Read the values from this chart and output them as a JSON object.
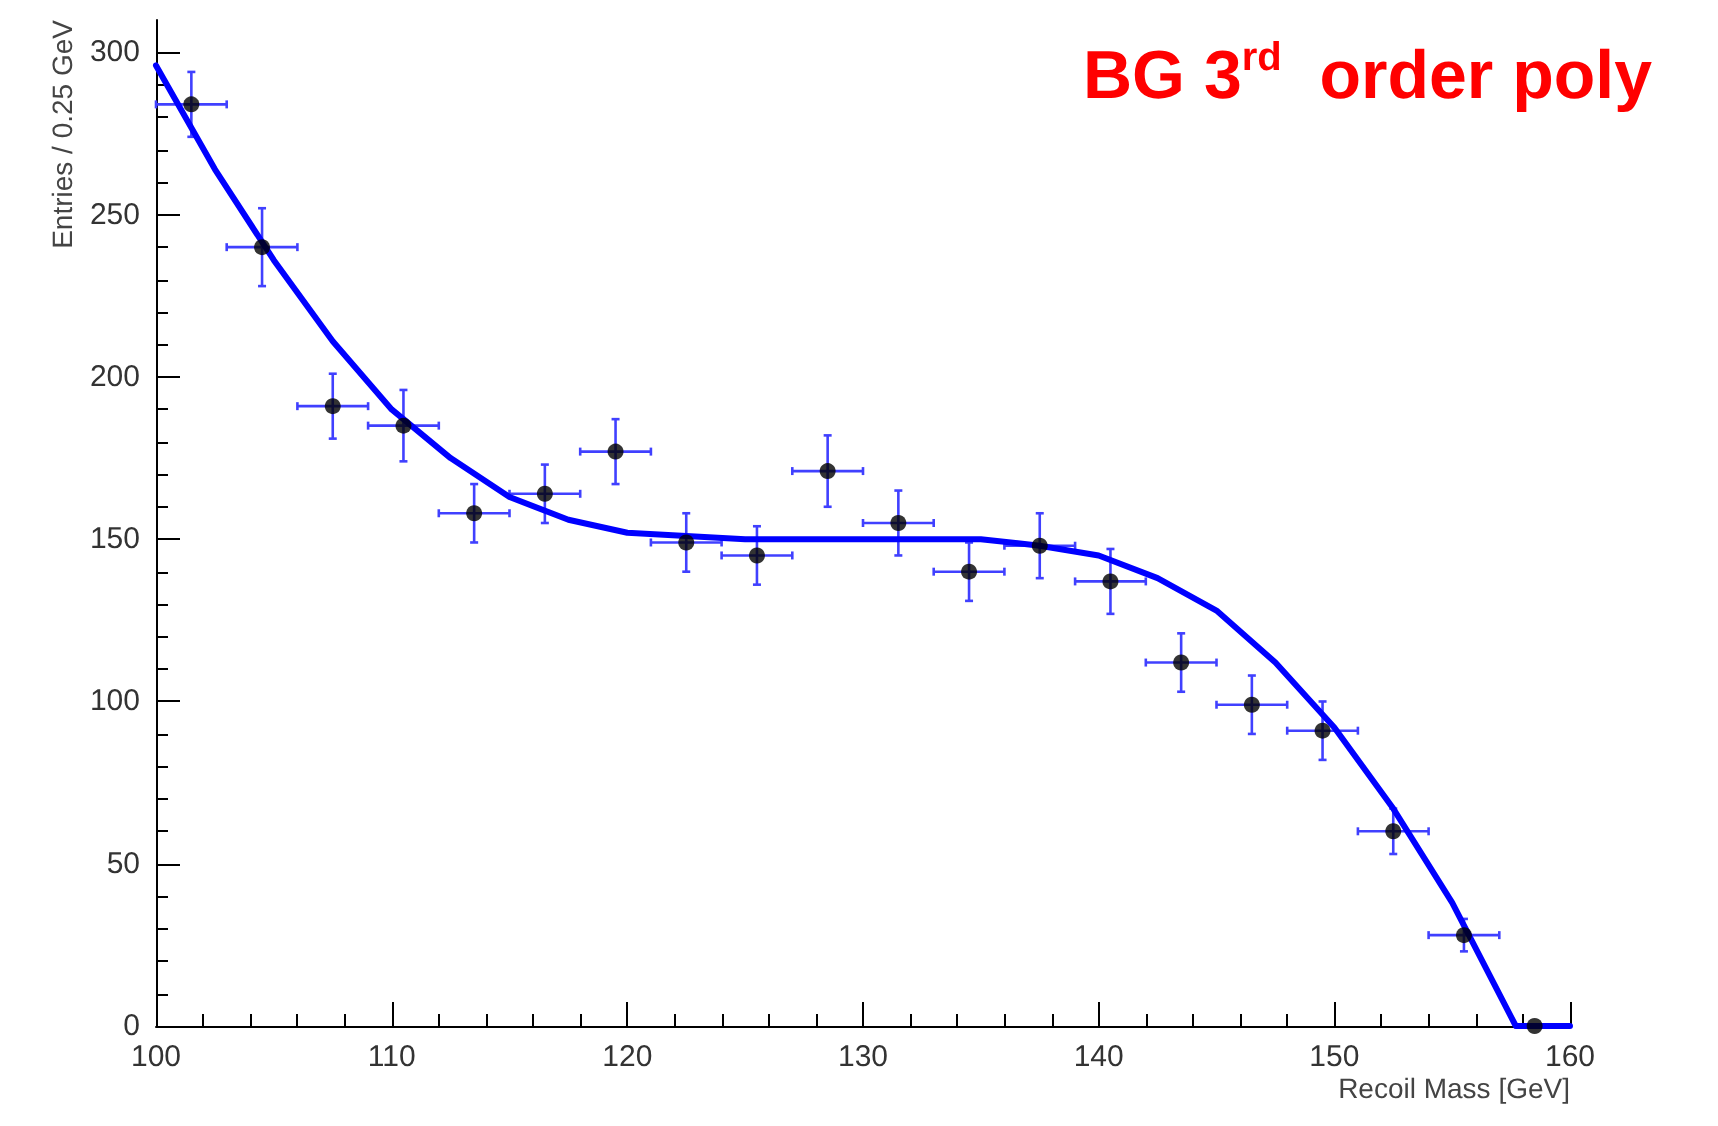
{
  "chart_data": {
    "type": "scatter",
    "title": "BG 3$^{rd}$  order poly",
    "xlabel": "Recoil Mass [GeV]",
    "ylabel": "Entries / 0.25 GeV",
    "xlim": [
      100,
      160
    ],
    "ylim": [
      0,
      310
    ],
    "xticks": [
      100,
      110,
      120,
      130,
      140,
      150,
      160
    ],
    "yticks": [
      0,
      50,
      100,
      150,
      200,
      250,
      300
    ],
    "grid": false,
    "marker": "circle",
    "series": [
      {
        "color": "#000000",
        "x": [
          101.5,
          104.5,
          107.5,
          110.5,
          113.5,
          116.5,
          119.5,
          122.5,
          125.5,
          128.5,
          131.5,
          134.5,
          137.5,
          140.5,
          143.5,
          146.5,
          149.5,
          152.5,
          155.5,
          158.5
        ],
        "values": [
          284,
          240,
          191,
          185,
          158,
          164,
          177,
          149,
          145,
          171,
          155,
          140,
          148,
          137,
          112,
          99,
          91,
          60,
          28,
          0
        ],
        "errors": [
          10,
          12,
          10,
          11,
          9,
          9,
          10,
          9,
          9,
          11,
          10,
          9,
          10,
          10,
          9,
          9,
          9,
          7,
          5,
          null
        ],
        "xerrors": [
          1.5,
          1.5,
          1.5,
          1.5,
          1.5,
          1.5,
          1.5,
          1.5,
          1.5,
          1.5,
          1.5,
          1.5,
          1.5,
          1.5,
          1.5,
          1.5,
          1.5,
          1.5,
          1.5,
          null
        ]
      },
      {
        "type": "line",
        "color": "#0000ff",
        "marker": "none",
        "line_style": "solid",
        "x": [
          100,
          102.5,
          105,
          107.5,
          110,
          112.5,
          115,
          117.5,
          120,
          122.5,
          125,
          127.5,
          130,
          132.5,
          135,
          137.5,
          140,
          142.5,
          145,
          147.5,
          150,
          152.5,
          155,
          157.7,
          160
        ],
        "values": [
          296,
          264,
          236,
          211,
          190,
          175,
          163,
          156,
          152,
          151,
          150,
          150,
          150,
          150,
          150,
          148,
          145,
          138,
          128,
          112,
          92,
          67,
          38,
          0,
          0
        ]
      }
    ]
  }
}
